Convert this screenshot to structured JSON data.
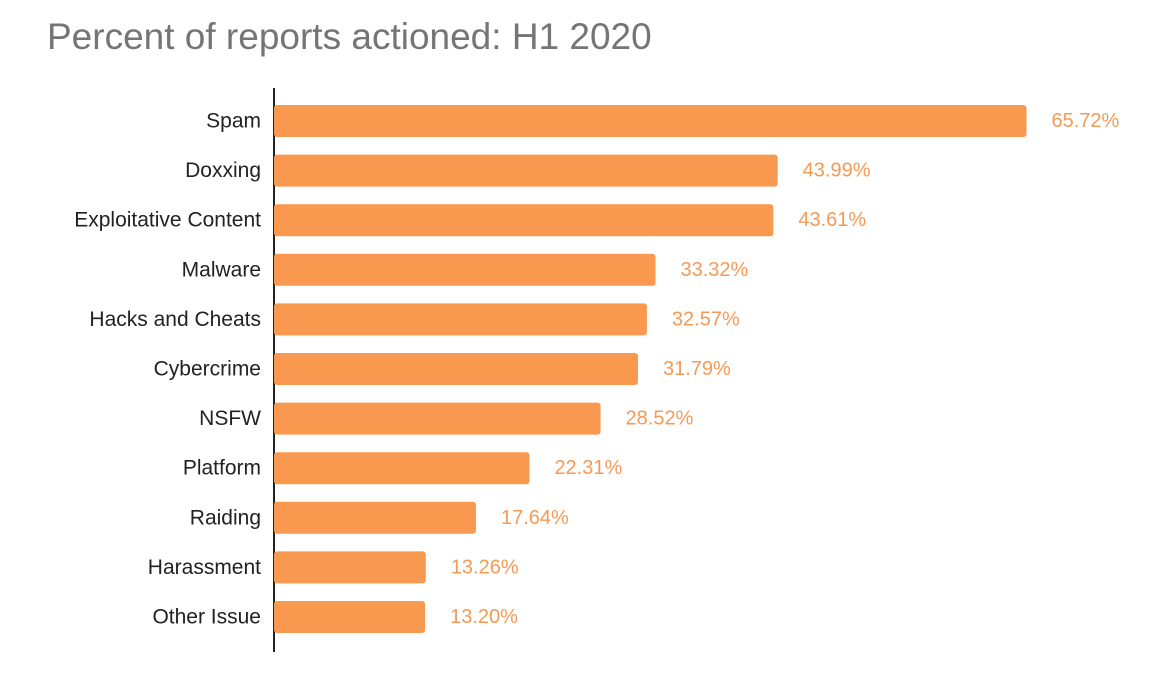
{
  "chart_data": {
    "type": "bar",
    "orientation": "horizontal",
    "title": "Percent of reports actioned: H1 2020",
    "xlabel": "",
    "ylabel": "",
    "xlim": [
      0,
      70
    ],
    "grid": false,
    "legend": "none",
    "categories": [
      "Spam",
      "Doxxing",
      "Exploitative Content",
      "Malware",
      "Hacks and Cheats",
      "Cybercrime",
      "NSFW",
      "Platform",
      "Raiding",
      "Harassment",
      "Other Issue"
    ],
    "values": [
      65.72,
      43.99,
      43.61,
      33.32,
      32.57,
      31.79,
      28.52,
      22.31,
      17.64,
      13.26,
      13.2
    ],
    "value_labels": [
      "65.72%",
      "43.99%",
      "43.61%",
      "33.32%",
      "32.57%",
      "31.79%",
      "28.52%",
      "22.31%",
      "17.64%",
      "13.26%",
      "13.20%"
    ],
    "colors": {
      "bar": "#f9994f",
      "value_label": "#f59a55",
      "title": "#757575",
      "axis": "#222222",
      "category_label": "#222222"
    }
  }
}
